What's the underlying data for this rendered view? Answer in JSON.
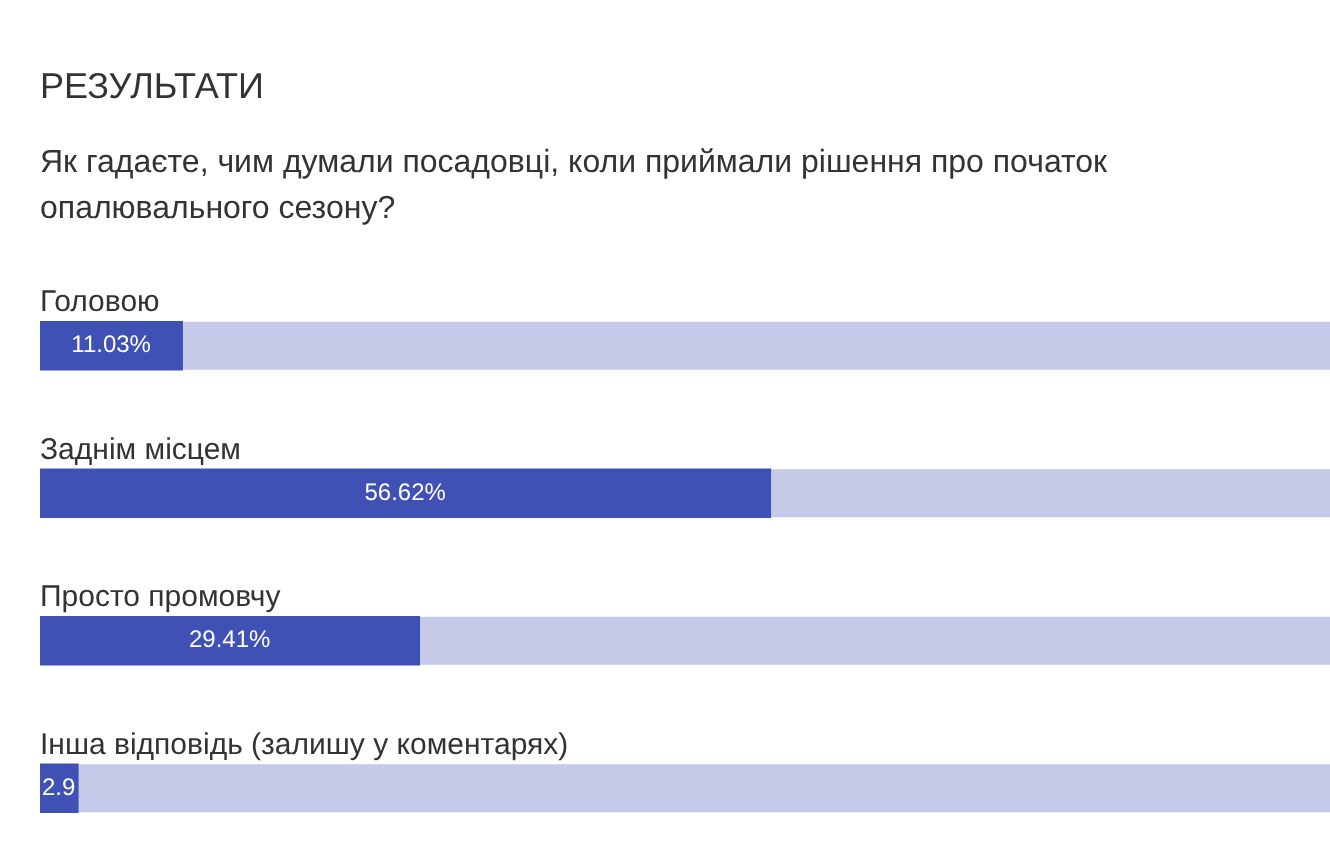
{
  "chart_data": {
    "type": "bar",
    "orientation": "horizontal",
    "title": "РЕЗУЛЬТАТИ",
    "subtitle": "Як гадаєте, чим думали посадовці, коли приймали рішення про початок опалювального сезону?",
    "categories": [
      "Головою",
      "Заднім місцем",
      "Просто промовчу",
      "Інша відповідь (залишу у коментарях)"
    ],
    "values": [
      11.03,
      56.62,
      29.41,
      2.94
    ],
    "value_labels": [
      "11.03%",
      "56.62%",
      "29.41%",
      "2.9"
    ],
    "color": "#3f51b5",
    "xlim": [
      0,
      100
    ],
    "tick_labels": false
  }
}
